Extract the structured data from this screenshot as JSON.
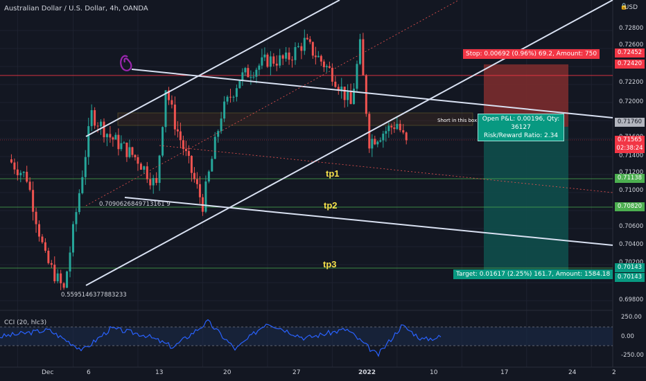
{
  "header": {
    "title": "Australian Dollar / U.S. Dollar, 4h, OANDA",
    "currency": "USD"
  },
  "price_axis": {
    "ticks": [
      "0.72800",
      "0.72600",
      "0.72200",
      "0.72000",
      "0.71800",
      "0.71600",
      "0.71400",
      "0.71200",
      "0.71000",
      "0.70800",
      "0.70600",
      "0.70400",
      "0.70200",
      "0.70000",
      "0.69800"
    ],
    "badges": {
      "stop_top": "0.72452",
      "stop_bottom": "0.72420",
      "short_entry": "0.71760",
      "last_price": "0.71565",
      "countdown": "02:38:24",
      "tp1": "0.71138",
      "tp2": "0.70820",
      "tp3_a": "0.70143",
      "tp3_b": "0.70143"
    }
  },
  "time_axis": {
    "ticks": [
      "Dec",
      "6",
      "13",
      "20",
      "27",
      "2022",
      "10",
      "17",
      "24",
      "2"
    ]
  },
  "position_tool": {
    "stop_label": "Stop: 0.00692 (0.96%) 69.2, Amount: 750",
    "pnl_label": "Open P&L: 0.00196, Qty: 36127",
    "rr_label": "Risk/Reward Ratio: 2.34",
    "target_label": "Target: 0.01617 (2.25%) 161.7, Amount: 1584.18"
  },
  "annotations": {
    "tp1": "tp1",
    "tp2": "tp2",
    "tp3": "tp3",
    "fib_upper": "0.7090626849713161 9",
    "fib_lower": "0.5595146377883233",
    "box_text": "Short in this box"
  },
  "indicator": {
    "title": "CCI (20, hlc3)",
    "ticks": [
      "250.00",
      "0.00",
      "-250.00"
    ]
  },
  "colors": {
    "background": "#131722",
    "up_candle": "#26a69a",
    "down_candle": "#ef5350",
    "stop_zone": "#7a2b2e",
    "target_zone": "#0f4e4b",
    "trendline": "#d9e1f2",
    "tp_color": "#f5e04a",
    "cci_line": "#2962ff"
  },
  "chart_data": {
    "type": "candlestick",
    "symbol": "AUDUSD",
    "timeframe": "4h",
    "x_range": [
      "2021-11-29",
      "2022-02-02"
    ],
    "y_range": [
      0.6975,
      0.7305
    ],
    "close_path": [
      {
        "t": "2021-11-29",
        "v": 0.714
      },
      {
        "t": "2021-12-01",
        "v": 0.712
      },
      {
        "t": "2021-12-03",
        "v": 0.703
      },
      {
        "t": "2021-12-05",
        "v": 0.6995
      },
      {
        "t": "2021-12-06",
        "v": 0.706
      },
      {
        "t": "2021-12-08",
        "v": 0.719
      },
      {
        "t": "2021-12-10",
        "v": 0.7165
      },
      {
        "t": "2021-12-13",
        "v": 0.714
      },
      {
        "t": "2021-12-15",
        "v": 0.711
      },
      {
        "t": "2021-12-16",
        "v": 0.722
      },
      {
        "t": "2021-12-17",
        "v": 0.718
      },
      {
        "t": "2021-12-20",
        "v": 0.709
      },
      {
        "t": "2021-12-22",
        "v": 0.719
      },
      {
        "t": "2021-12-24",
        "v": 0.723
      },
      {
        "t": "2021-12-27",
        "v": 0.725
      },
      {
        "t": "2021-12-29",
        "v": 0.725
      },
      {
        "t": "2021-12-31",
        "v": 0.727
      },
      {
        "t": "2022-01-03",
        "v": 0.7235
      },
      {
        "t": "2022-01-05",
        "v": 0.72
      },
      {
        "t": "2022-01-06",
        "v": 0.7265
      },
      {
        "t": "2022-01-07",
        "v": 0.716
      },
      {
        "t": "2022-01-10",
        "v": 0.718
      },
      {
        "t": "2022-01-11",
        "v": 0.7157
      }
    ],
    "levels": {
      "stop": 0.72452,
      "entry": 0.7176,
      "tp1": 0.71138,
      "tp2": 0.7082,
      "tp3": 0.70143
    },
    "indicator": {
      "name": "CCI",
      "period": 20,
      "source": "hlc3",
      "y_range": [
        -250,
        250
      ]
    }
  }
}
